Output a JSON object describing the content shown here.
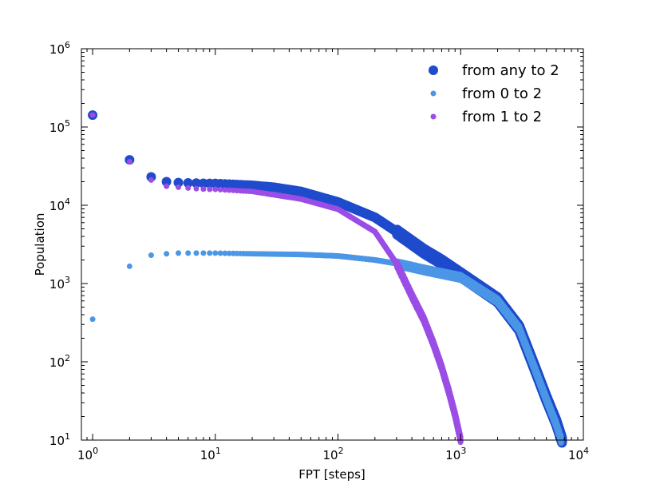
{
  "chart_data": {
    "type": "scatter",
    "title": "",
    "xlabel": "FPT [steps]",
    "ylabel": "Population",
    "xscale": "log",
    "yscale": "log",
    "xlim": [
      0.81,
      10000
    ],
    "ylim": [
      10,
      1000000
    ],
    "xticks": [
      {
        "base": "10",
        "exp": "0",
        "value": 1
      },
      {
        "base": "10",
        "exp": "1",
        "value": 10
      },
      {
        "base": "10",
        "exp": "2",
        "value": 100
      },
      {
        "base": "10",
        "exp": "3",
        "value": 1000
      },
      {
        "base": "10",
        "exp": "4",
        "value": 10000
      }
    ],
    "yticks": [
      {
        "base": "10",
        "exp": "1",
        "value": 10
      },
      {
        "base": "10",
        "exp": "2",
        "value": 100
      },
      {
        "base": "10",
        "exp": "3",
        "value": 1000
      },
      {
        "base": "10",
        "exp": "4",
        "value": 10000
      },
      {
        "base": "10",
        "exp": "5",
        "value": 100000
      },
      {
        "base": "10",
        "exp": "6",
        "value": 1000000
      }
    ],
    "grid": false,
    "legend_position": "top-right",
    "series": [
      {
        "name": "from any to 2",
        "color": "#1f4bcc",
        "marker_size": "large",
        "points": [
          [
            1,
            142000
          ],
          [
            2,
            38000
          ],
          [
            3,
            23000
          ],
          [
            4,
            20000
          ],
          [
            5,
            19500
          ],
          [
            6,
            19300
          ],
          [
            7,
            19200
          ],
          [
            8,
            19100
          ],
          [
            9,
            19000
          ],
          [
            10,
            19000
          ],
          [
            20,
            18000
          ],
          [
            30,
            17000
          ],
          [
            50,
            15000
          ],
          [
            100,
            11000
          ],
          [
            200,
            7000
          ],
          [
            300,
            4600
          ],
          [
            500,
            2600
          ],
          [
            700,
            1900
          ],
          [
            1000,
            1300
          ],
          [
            2000,
            620
          ],
          [
            3000,
            270
          ],
          [
            4000,
            85
          ],
          [
            5000,
            34
          ],
          [
            6000,
            17
          ],
          [
            6700,
            10
          ]
        ]
      },
      {
        "name": "from 0 to 2",
        "color": "#4c96e6",
        "marker_size": "small",
        "points": [
          [
            1,
            350
          ],
          [
            2,
            1660
          ],
          [
            3,
            2300
          ],
          [
            4,
            2400
          ],
          [
            5,
            2450
          ],
          [
            6,
            2450
          ],
          [
            7,
            2450
          ],
          [
            8,
            2450
          ],
          [
            9,
            2450
          ],
          [
            10,
            2450
          ],
          [
            20,
            2400
          ],
          [
            50,
            2350
          ],
          [
            100,
            2250
          ],
          [
            200,
            2000
          ],
          [
            300,
            1800
          ],
          [
            500,
            1500
          ],
          [
            1000,
            1200
          ],
          [
            2000,
            600
          ],
          [
            3000,
            265
          ],
          [
            4000,
            83
          ],
          [
            5000,
            33
          ],
          [
            6000,
            16
          ],
          [
            6600,
            10
          ]
        ]
      },
      {
        "name": "from 1 to 2",
        "color": "#9b4de6",
        "marker_size": "small",
        "points": [
          [
            1,
            142000
          ],
          [
            2,
            36000
          ],
          [
            3,
            21000
          ],
          [
            4,
            17500
          ],
          [
            5,
            17000
          ],
          [
            6,
            16600
          ],
          [
            7,
            16300
          ],
          [
            8,
            16100
          ],
          [
            9,
            16000
          ],
          [
            10,
            16000
          ],
          [
            20,
            15000
          ],
          [
            50,
            12000
          ],
          [
            100,
            8900
          ],
          [
            200,
            4600
          ],
          [
            300,
            1800
          ],
          [
            400,
            700
          ],
          [
            500,
            350
          ],
          [
            600,
            170
          ],
          [
            700,
            85
          ],
          [
            800,
            42
          ],
          [
            900,
            21
          ],
          [
            1000,
            10
          ]
        ]
      }
    ]
  }
}
